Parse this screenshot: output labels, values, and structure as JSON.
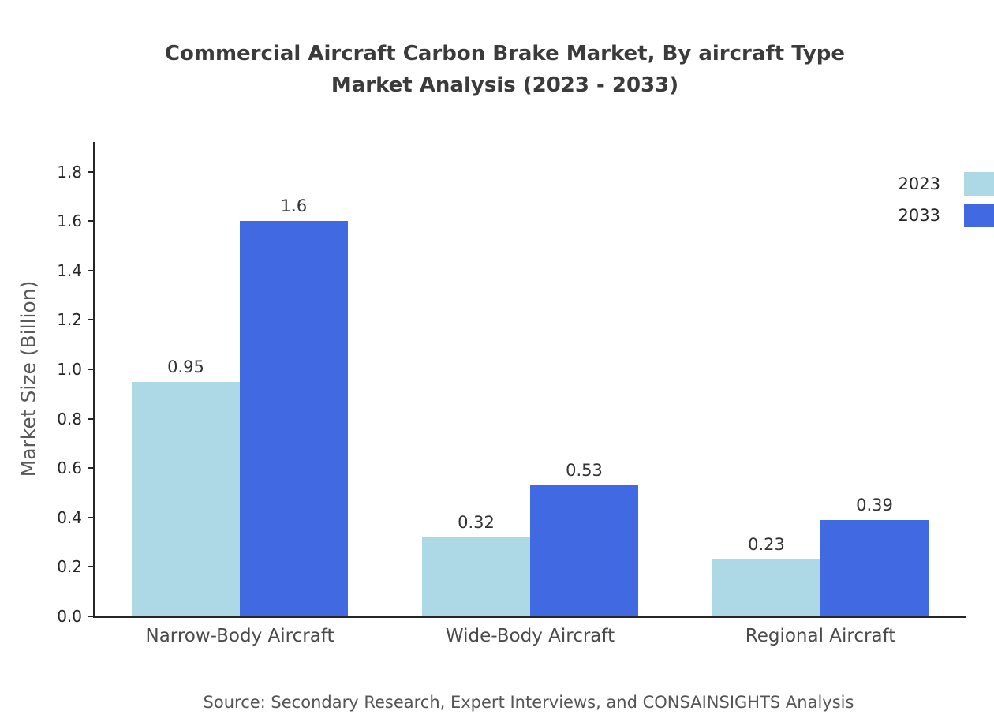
{
  "chart_data": {
    "type": "bar",
    "title": "Commercial Aircraft Carbon Brake Market, By aircraft Type\nMarket Analysis (2023 - 2033)",
    "ylabel": "Market Size (Billion)",
    "xlabel": "",
    "categories": [
      "Narrow-Body Aircraft",
      "Wide-Body Aircraft",
      "Regional Aircraft"
    ],
    "series": [
      {
        "name": "2023",
        "color": "#ADD8E6",
        "values": [
          0.95,
          0.32,
          0.23
        ]
      },
      {
        "name": "2033",
        "color": "#4169E1",
        "values": [
          1.6,
          0.53,
          0.39
        ]
      }
    ],
    "ylim": [
      0,
      1.92
    ],
    "y_ticks": [
      0.0,
      0.2,
      0.4,
      0.6,
      0.8,
      1.0,
      1.2,
      1.4,
      1.6,
      1.8
    ],
    "grid": false,
    "legend_position": "upper right",
    "source": "Source: Secondary Research, Expert Interviews, and CONSAINSIGHTS Analysis"
  }
}
